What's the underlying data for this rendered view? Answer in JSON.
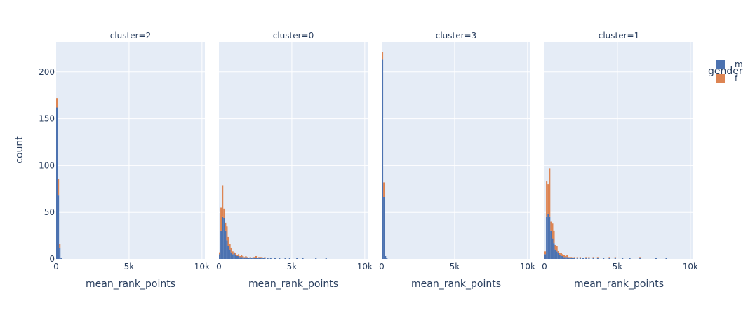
{
  "chart_data": {
    "type": "bar",
    "histogram": true,
    "barmode": "stack",
    "bin_width": 100,
    "xlabel": "mean_rank_points",
    "ylabel": "count",
    "xlim": [
      0,
      10200
    ],
    "ylim": [
      0,
      232
    ],
    "x_tick_values": [
      0,
      5000,
      10000
    ],
    "x_tick_labels": [
      "0",
      "5k",
      "10k"
    ],
    "y_tick_values": [
      0,
      50,
      100,
      150,
      200
    ],
    "y_tick_labels": [
      "0",
      "50",
      "100",
      "150",
      "200"
    ],
    "grid": true,
    "legend": {
      "title": "gender",
      "placement": "top-right",
      "entries": [
        {
          "label": "m",
          "color": "#4C72B0"
        },
        {
          "label": "f",
          "color": "#DD8452"
        }
      ]
    },
    "panels": [
      {
        "title": "cluster=2",
        "series": [
          {
            "name": "m",
            "x": [
              0,
              100,
              200,
              300
            ],
            "y": [
              162,
              68,
              12,
              1
            ]
          },
          {
            "name": "f",
            "x": [
              0,
              100,
              200,
              300
            ],
            "y": [
              10,
              18,
              4,
              0
            ]
          }
        ]
      },
      {
        "title": "cluster=0",
        "series": [
          {
            "name": "m",
            "x": [
              0,
              100,
              200,
              300,
              400,
              500,
              600,
              700,
              800,
              900,
              1000,
              1100,
              1200,
              1300,
              1400,
              1500,
              1600,
              1700,
              1800,
              1900,
              2000,
              2100,
              2200,
              2300,
              2400,
              2500,
              2600,
              2700,
              2800,
              2900,
              3000,
              3100,
              3300,
              3500,
              3800,
              4100,
              4500,
              4800,
              5300,
              5700,
              6600,
              7300
            ],
            "y": [
              5,
              30,
              45,
              44,
              30,
              20,
              14,
              10,
              7,
              5,
              6,
              4,
              3,
              3,
              2,
              2,
              2,
              1,
              2,
              1,
              1,
              1,
              1,
              1,
              1,
              1,
              1,
              1,
              1,
              1,
              1,
              1,
              1,
              1,
              1,
              1,
              1,
              1,
              1,
              1,
              1,
              1
            ]
          },
          {
            "name": "f",
            "x": [
              0,
              100,
              200,
              300,
              400,
              500,
              600,
              700,
              800,
              900,
              1000,
              1100,
              1200,
              1300,
              1400,
              1500,
              1600,
              1700,
              1800,
              1900,
              2000,
              2100,
              2200,
              2300,
              2400,
              2500,
              2600,
              2700,
              2800,
              2900,
              3000,
              3100,
              3300,
              3500,
              3800,
              4100,
              4500,
              4800,
              5300,
              5700,
              6600,
              7300
            ],
            "y": [
              2,
              25,
              34,
              10,
              9,
              15,
              10,
              6,
              5,
              3,
              1,
              2,
              1,
              2,
              1,
              2,
              1,
              1,
              1,
              1,
              0,
              1,
              0,
              1,
              1,
              2,
              0,
              1,
              1,
              1,
              0,
              1,
              0,
              0,
              0,
              0,
              0,
              0,
              0,
              0,
              0,
              0
            ]
          }
        ]
      },
      {
        "title": "cluster=3",
        "series": [
          {
            "name": "m",
            "x": [
              0,
              100,
              200,
              300
            ],
            "y": [
              213,
              66,
              3,
              1
            ]
          },
          {
            "name": "f",
            "x": [
              0,
              100,
              200,
              300
            ],
            "y": [
              8,
              16,
              0,
              0
            ]
          }
        ]
      },
      {
        "title": "cluster=1",
        "series": [
          {
            "name": "m",
            "x": [
              0,
              100,
              200,
              300,
              400,
              500,
              600,
              700,
              800,
              900,
              1000,
              1100,
              1200,
              1300,
              1400,
              1500,
              1600,
              1700,
              1800,
              1900,
              2000,
              2200,
              2400,
              2600,
              2800,
              3000,
              3300,
              3600,
              4000,
              4400,
              4800,
              5300,
              5800,
              6500,
              7600,
              8300
            ],
            "y": [
              5,
              45,
              48,
              45,
              30,
              22,
              17,
              10,
              8,
              6,
              4,
              3,
              3,
              2,
              2,
              2,
              1,
              1,
              1,
              1,
              1,
              1,
              1,
              1,
              1,
              1,
              1,
              1,
              1,
              1,
              1,
              1,
              1,
              1,
              1,
              1
            ]
          },
          {
            "name": "f",
            "x": [
              0,
              100,
              200,
              300,
              400,
              500,
              600,
              700,
              800,
              900,
              1000,
              1100,
              1200,
              1300,
              1400,
              1500,
              1600,
              1700,
              1800,
              1900,
              2000,
              2200,
              2400,
              2600,
              2800,
              3000,
              3300,
              3600,
              4000,
              4400,
              4800,
              5300,
              5800,
              6500,
              7600,
              8300
            ],
            "y": [
              3,
              38,
              32,
              52,
              10,
              16,
              13,
              5,
              6,
              3,
              2,
              3,
              2,
              2,
              1,
              2,
              1,
              1,
              1,
              0,
              1,
              1,
              1,
              0,
              1,
              1,
              1,
              1,
              0,
              1,
              1,
              0,
              0,
              1,
              0,
              0
            ]
          }
        ]
      }
    ]
  }
}
